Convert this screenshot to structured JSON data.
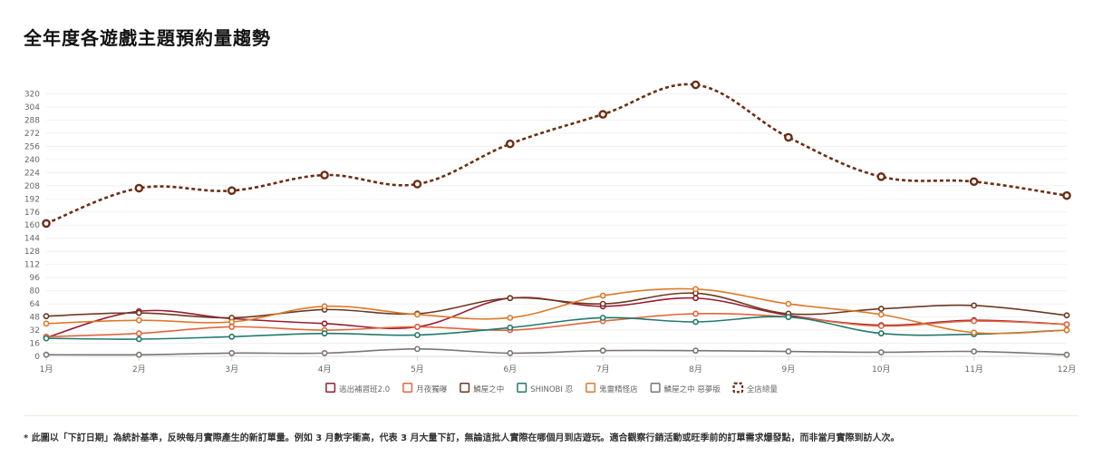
{
  "title": "全年度各遊戲主題預約量趨勢",
  "note": "* 此圖以「下訂日期」為統計基準，反映每月實際產生的新訂單量。例如 3 月數字衝高，代表 3 月大量下訂，無論這批人實際在哪個月到店遊玩。適合觀察行銷活動或旺季前的訂單需求爆發點，而非當月實際到訪人次。",
  "chart_data": {
    "type": "line",
    "title": "全年度各遊戲主題預約量趨勢",
    "xlabel": "",
    "ylabel": "",
    "ylim": [
      0,
      336
    ],
    "yticks": [
      0,
      16,
      32,
      48,
      64,
      80,
      96,
      112,
      128,
      144,
      160,
      176,
      192,
      208,
      224,
      240,
      256,
      272,
      288,
      304,
      320
    ],
    "grid": true,
    "legend_position": "bottom",
    "categories": [
      "1月",
      "2月",
      "3月",
      "4月",
      "5月",
      "6月",
      "7月",
      "8月",
      "9月",
      "10月",
      "11月",
      "12月"
    ],
    "series": [
      {
        "name": "逃出補習班2.0",
        "color": "#9b1b30",
        "style": "solid",
        "values": [
          23,
          55,
          46,
          40,
          36,
          71,
          61,
          71,
          50,
          38,
          44,
          39
        ]
      },
      {
        "name": "月夜獨曝",
        "color": "#e0663e",
        "style": "solid",
        "values": [
          24,
          28,
          36,
          32,
          36,
          32,
          43,
          52,
          48,
          37,
          43,
          39
        ]
      },
      {
        "name": "鱗屋之中",
        "color": "#6b3a22",
        "style": "solid",
        "values": [
          49,
          53,
          47,
          57,
          52,
          71,
          64,
          77,
          52,
          58,
          62,
          50
        ]
      },
      {
        "name": "SHINOBI 忍",
        "color": "#237a6d",
        "style": "solid",
        "values": [
          22,
          21,
          24,
          28,
          26,
          35,
          47,
          42,
          48,
          28,
          27,
          32
        ]
      },
      {
        "name": "鬼靈精怪店",
        "color": "#dd7a2c",
        "style": "solid",
        "values": [
          40,
          44,
          42,
          61,
          51,
          47,
          74,
          82,
          64,
          51,
          29,
          32
        ]
      },
      {
        "name": "鱗屋之中 惡夢版",
        "color": "#7a7674",
        "style": "solid",
        "values": [
          2,
          2,
          4,
          4,
          9,
          4,
          7,
          7,
          6,
          5,
          6,
          2
        ]
      },
      {
        "name": "全店總量",
        "color": "#6b2e14",
        "style": "dashed",
        "values": [
          162,
          205,
          202,
          221,
          210,
          259,
          295,
          331,
          267,
          219,
          213,
          196
        ]
      }
    ]
  }
}
